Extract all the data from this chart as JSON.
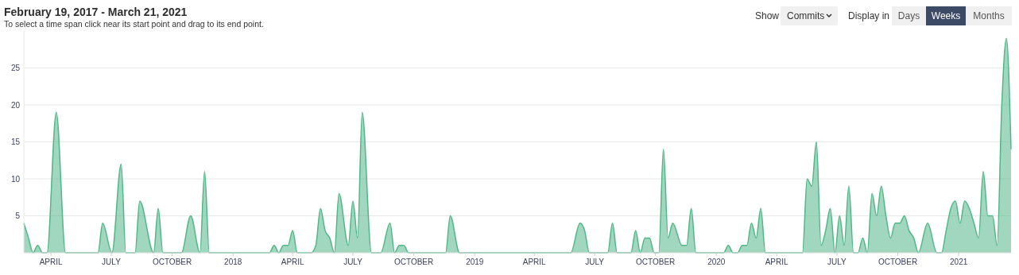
{
  "chart_data": {
    "type": "area",
    "title": "February 19, 2017 - March 21, 2021",
    "subtitle": "To select a time span click near its start point and drag to its end point.",
    "annotations": [
      "Show",
      "Commits",
      "Display in",
      "Days",
      "Weeks",
      "Months"
    ],
    "xlim": [
      "2017-02-19",
      "2021-03-21"
    ],
    "xticks": [
      {
        "value": "2017-04-01",
        "label": "APRIL"
      },
      {
        "value": "2017-07-01",
        "label": "JULY"
      },
      {
        "value": "2017-10-01",
        "label": "OCTOBER"
      },
      {
        "value": "2018-01-01",
        "label": "2018"
      },
      {
        "value": "2018-04-01",
        "label": "APRIL"
      },
      {
        "value": "2018-07-01",
        "label": "JULY"
      },
      {
        "value": "2018-10-01",
        "label": "OCTOBER"
      },
      {
        "value": "2019-01-01",
        "label": "2019"
      },
      {
        "value": "2019-04-01",
        "label": "APRIL"
      },
      {
        "value": "2019-07-01",
        "label": "JULY"
      },
      {
        "value": "2019-10-01",
        "label": "OCTOBER"
      },
      {
        "value": "2020-01-01",
        "label": "2020"
      },
      {
        "value": "2020-04-01",
        "label": "APRIL"
      },
      {
        "value": "2020-07-01",
        "label": "JULY"
      },
      {
        "value": "2020-10-01",
        "label": "OCTOBER"
      },
      {
        "value": "2021-01-01",
        "label": "2021"
      }
    ],
    "ylim": [
      0,
      30
    ],
    "yticks": [
      5,
      10,
      15,
      20,
      25
    ],
    "grid": "y",
    "series": [
      {
        "color": "#52b788",
        "x": [
          "2017-02-19",
          "2017-02-26",
          "2017-03-05",
          "2017-03-12",
          "2017-03-19",
          "2017-03-26",
          "2017-04-09",
          "2017-04-23",
          "2017-06-11",
          "2017-06-18",
          "2017-07-02",
          "2017-07-16",
          "2017-07-23",
          "2017-08-06",
          "2017-08-13",
          "2017-09-03",
          "2017-09-10",
          "2017-09-17",
          "2017-10-15",
          "2017-10-29",
          "2017-11-12",
          "2017-11-19",
          "2017-11-26",
          "2018-02-25",
          "2018-03-04",
          "2018-03-11",
          "2018-03-18",
          "2018-03-25",
          "2018-04-01",
          "2018-04-08",
          "2018-04-29",
          "2018-05-06",
          "2018-05-13",
          "2018-05-20",
          "2018-05-27",
          "2018-06-03",
          "2018-06-10",
          "2018-06-24",
          "2018-07-01",
          "2018-07-08",
          "2018-07-15",
          "2018-07-29",
          "2018-08-12",
          "2018-08-26",
          "2018-09-02",
          "2018-09-09",
          "2018-09-16",
          "2018-09-23",
          "2018-11-18",
          "2018-11-25",
          "2018-12-09",
          "2019-05-26",
          "2019-06-09",
          "2019-06-16",
          "2019-06-23",
          "2019-07-21",
          "2019-07-28",
          "2019-08-04",
          "2019-08-25",
          "2019-09-01",
          "2019-09-08",
          "2019-09-15",
          "2019-09-22",
          "2019-09-29",
          "2019-10-06",
          "2019-10-13",
          "2019-10-20",
          "2019-10-27",
          "2019-11-10",
          "2019-11-17",
          "2019-11-24",
          "2019-12-01",
          "2019-12-08",
          "2020-01-12",
          "2020-01-19",
          "2020-01-26",
          "2020-02-02",
          "2020-02-09",
          "2020-02-16",
          "2020-02-23",
          "2020-03-01",
          "2020-03-08",
          "2020-03-15",
          "2020-05-10",
          "2020-05-17",
          "2020-05-24",
          "2020-05-31",
          "2020-06-07",
          "2020-06-14",
          "2020-06-21",
          "2020-06-28",
          "2020-07-05",
          "2020-07-12",
          "2020-07-19",
          "2020-07-26",
          "2020-08-02",
          "2020-08-09",
          "2020-08-16",
          "2020-08-23",
          "2020-08-30",
          "2020-09-06",
          "2020-09-13",
          "2020-09-20",
          "2020-09-27",
          "2020-10-04",
          "2020-10-11",
          "2020-10-18",
          "2020-10-25",
          "2020-11-01",
          "2020-11-15",
          "2020-11-29",
          "2020-12-06",
          "2020-12-13",
          "2020-12-20",
          "2020-12-27",
          "2021-01-03",
          "2021-01-10",
          "2021-01-17",
          "2021-01-24",
          "2021-01-31",
          "2021-02-07",
          "2021-02-14",
          "2021-02-21",
          "2021-02-28",
          "2021-03-07",
          "2021-03-14",
          "2021-03-21"
        ],
        "values": [
          4,
          2,
          0,
          1,
          0,
          0,
          19,
          0,
          0,
          4,
          0,
          12,
          0,
          0,
          7,
          0,
          6,
          0,
          0,
          5,
          0,
          11,
          0,
          0,
          1,
          0,
          1,
          1,
          3,
          0,
          0,
          1,
          6,
          3,
          2,
          0,
          8,
          1,
          7,
          2,
          19,
          0,
          0,
          4,
          0,
          1,
          1,
          0,
          0,
          5,
          0,
          0,
          4,
          3,
          0,
          0,
          4,
          0,
          0,
          3,
          0,
          2,
          2,
          0,
          0,
          14,
          2,
          4,
          1,
          1,
          6,
          0,
          0,
          0,
          1,
          0,
          0,
          1,
          1,
          4,
          2,
          6,
          0,
          0,
          10,
          9,
          15,
          1,
          3,
          6,
          0,
          5,
          1,
          9,
          0,
          0,
          2,
          0,
          8,
          5,
          9,
          5,
          2,
          4,
          4,
          5,
          3,
          2,
          0,
          4,
          0,
          0,
          3,
          6,
          7,
          4,
          7,
          6,
          4,
          2,
          11,
          5,
          5,
          1,
          20,
          29,
          14
        ]
      }
    ]
  }
}
